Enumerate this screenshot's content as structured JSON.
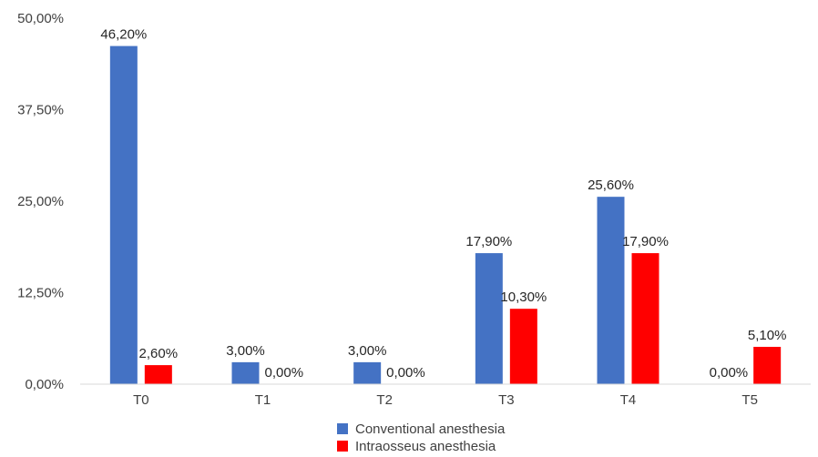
{
  "chart_data": {
    "type": "bar",
    "title": "",
    "xlabel": "",
    "ylabel": "",
    "categories": [
      "T0",
      "T1",
      "T2",
      "T3",
      "T4",
      "T5"
    ],
    "series": [
      {
        "name": "Conventional anesthesia",
        "color": "#4472C4",
        "values": [
          46.2,
          3.0,
          3.0,
          17.9,
          25.6,
          0.0
        ],
        "labels": [
          "46,20%",
          "3,00%",
          "3,00%",
          "17,90%",
          "25,60%",
          "0,00%"
        ]
      },
      {
        "name": "Intraosseus anesthesia",
        "color": "#FF0000",
        "values": [
          2.6,
          0.0,
          0.0,
          10.3,
          17.9,
          5.1
        ],
        "labels": [
          "2,60%",
          "0,00%",
          "0,00%",
          "10,30%",
          "17,90%",
          "5,10%"
        ]
      }
    ],
    "yticks": [
      "0,00%",
      "12,50%",
      "25,00%",
      "37,50%",
      "50,00%"
    ],
    "ylim": [
      0,
      50
    ],
    "grid": false,
    "legend_position": "bottom"
  }
}
